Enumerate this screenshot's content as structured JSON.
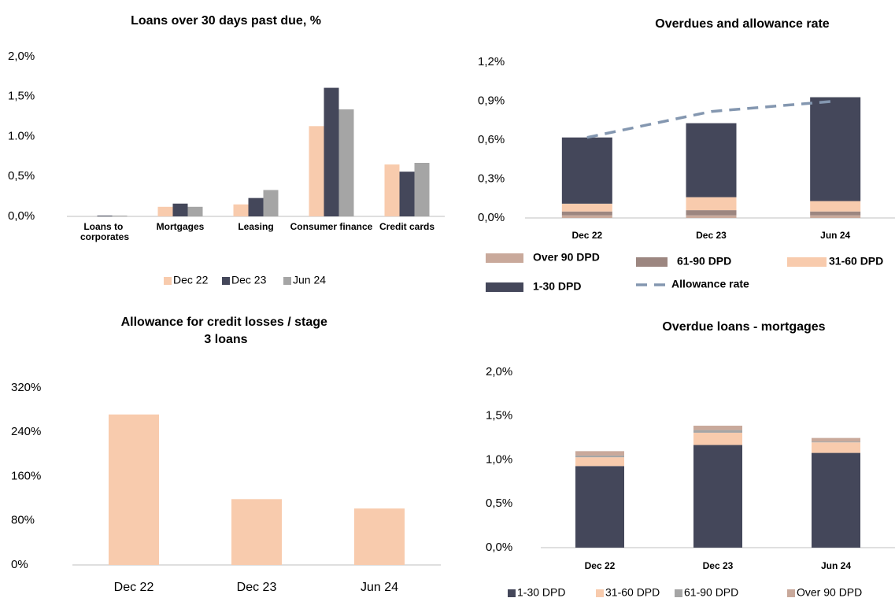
{
  "chart_data": [
    {
      "type": "bar",
      "title": "Loans over 30 days past due, %",
      "categories": [
        "Loans to corporates",
        "Mortgages",
        "Leasing",
        "Consumer finance",
        "Credit cards"
      ],
      "series": [
        {
          "name": "Dec 22",
          "color": "#f8cbad",
          "values": [
            0.0,
            0.12,
            0.15,
            1.13,
            0.65
          ]
        },
        {
          "name": "Dec 23",
          "color": "#44475a",
          "values": [
            0.01,
            0.16,
            0.23,
            1.61,
            0.56
          ]
        },
        {
          "name": "Jun 24",
          "color": "#a5a5a5",
          "values": [
            0.01,
            0.12,
            0.33,
            1.34,
            0.67
          ]
        }
      ],
      "ylim": [
        0,
        2.0
      ],
      "yticks": [
        {
          "value": 0,
          "label": "0,0%"
        },
        {
          "value": 0.5,
          "label": "0,5%"
        },
        {
          "value": 1.0,
          "label": "1.0%"
        },
        {
          "value": 1.5,
          "label": "1,5%"
        },
        {
          "value": 2.0,
          "label": "2,0%"
        }
      ]
    },
    {
      "type": "stacked_bar",
      "title": "Overdues and allowance rate",
      "categories": [
        "Dec 22",
        "Dec 23",
        "Jun 24"
      ],
      "series": [
        {
          "name": "Over 90 DPD",
          "color": "#c9a99b",
          "values": [
            0.02,
            0.02,
            0.02
          ]
        },
        {
          "name": "61-90 DPD",
          "color": "#9c8680",
          "values": [
            0.03,
            0.04,
            0.03
          ]
        },
        {
          "name": "31-60 DPD",
          "color": "#f8cbad",
          "values": [
            0.06,
            0.1,
            0.08
          ]
        },
        {
          "name": "1-30 DPD",
          "color": "#44475a",
          "values": [
            0.51,
            0.57,
            0.8
          ]
        },
        {
          "name": "Allowance rate",
          "color": "#8497b0",
          "type": "line",
          "style": "dashed",
          "values": [
            0.62,
            0.82,
            0.9
          ]
        }
      ],
      "ylim": [
        0,
        1.2
      ],
      "yticks": [
        {
          "value": 0,
          "label": "0,0%"
        },
        {
          "value": 0.3,
          "label": "0,3%"
        },
        {
          "value": 0.6,
          "label": "0,6%"
        },
        {
          "value": 0.9,
          "label": "0,9%"
        },
        {
          "value": 1.2,
          "label": "1,2%"
        }
      ]
    },
    {
      "type": "bar",
      "title": "Allowance for credit losses / stage 3 loans",
      "categories": [
        "Dec 22",
        "Dec 23",
        "Jun 24"
      ],
      "values": [
        272,
        119,
        102
      ],
      "color": "#f8cbad",
      "ylim": [
        0,
        320
      ],
      "yticks": [
        {
          "value": 0,
          "label": "0%"
        },
        {
          "value": 80,
          "label": "80%"
        },
        {
          "value": 160,
          "label": "160%"
        },
        {
          "value": 240,
          "label": "240%"
        },
        {
          "value": 320,
          "label": "320%"
        }
      ]
    },
    {
      "type": "stacked_bar",
      "title": "Overdue loans - mortgages",
      "categories": [
        "Dec 22",
        "Dec 23",
        "Jun 24"
      ],
      "series": [
        {
          "name": "1-30 DPD",
          "color": "#44475a",
          "values": [
            0.93,
            1.17,
            1.08
          ]
        },
        {
          "name": "31-60 DPD",
          "color": "#f8cbad",
          "values": [
            0.1,
            0.14,
            0.12
          ]
        },
        {
          "name": "61-90 DPD",
          "color": "#a5a5a5",
          "values": [
            0.02,
            0.03,
            0.01
          ]
        },
        {
          "name": "Over 90 DPD",
          "color": "#c9a99b",
          "values": [
            0.05,
            0.05,
            0.04
          ]
        }
      ],
      "ylim": [
        0,
        2.0
      ],
      "yticks": [
        {
          "value": 0,
          "label": "0,0%"
        },
        {
          "value": 0.5,
          "label": "0,5%"
        },
        {
          "value": 1.0,
          "label": "1,0%"
        },
        {
          "value": 1.5,
          "label": "1,5%"
        },
        {
          "value": 2.0,
          "label": "2,0%"
        }
      ]
    }
  ]
}
